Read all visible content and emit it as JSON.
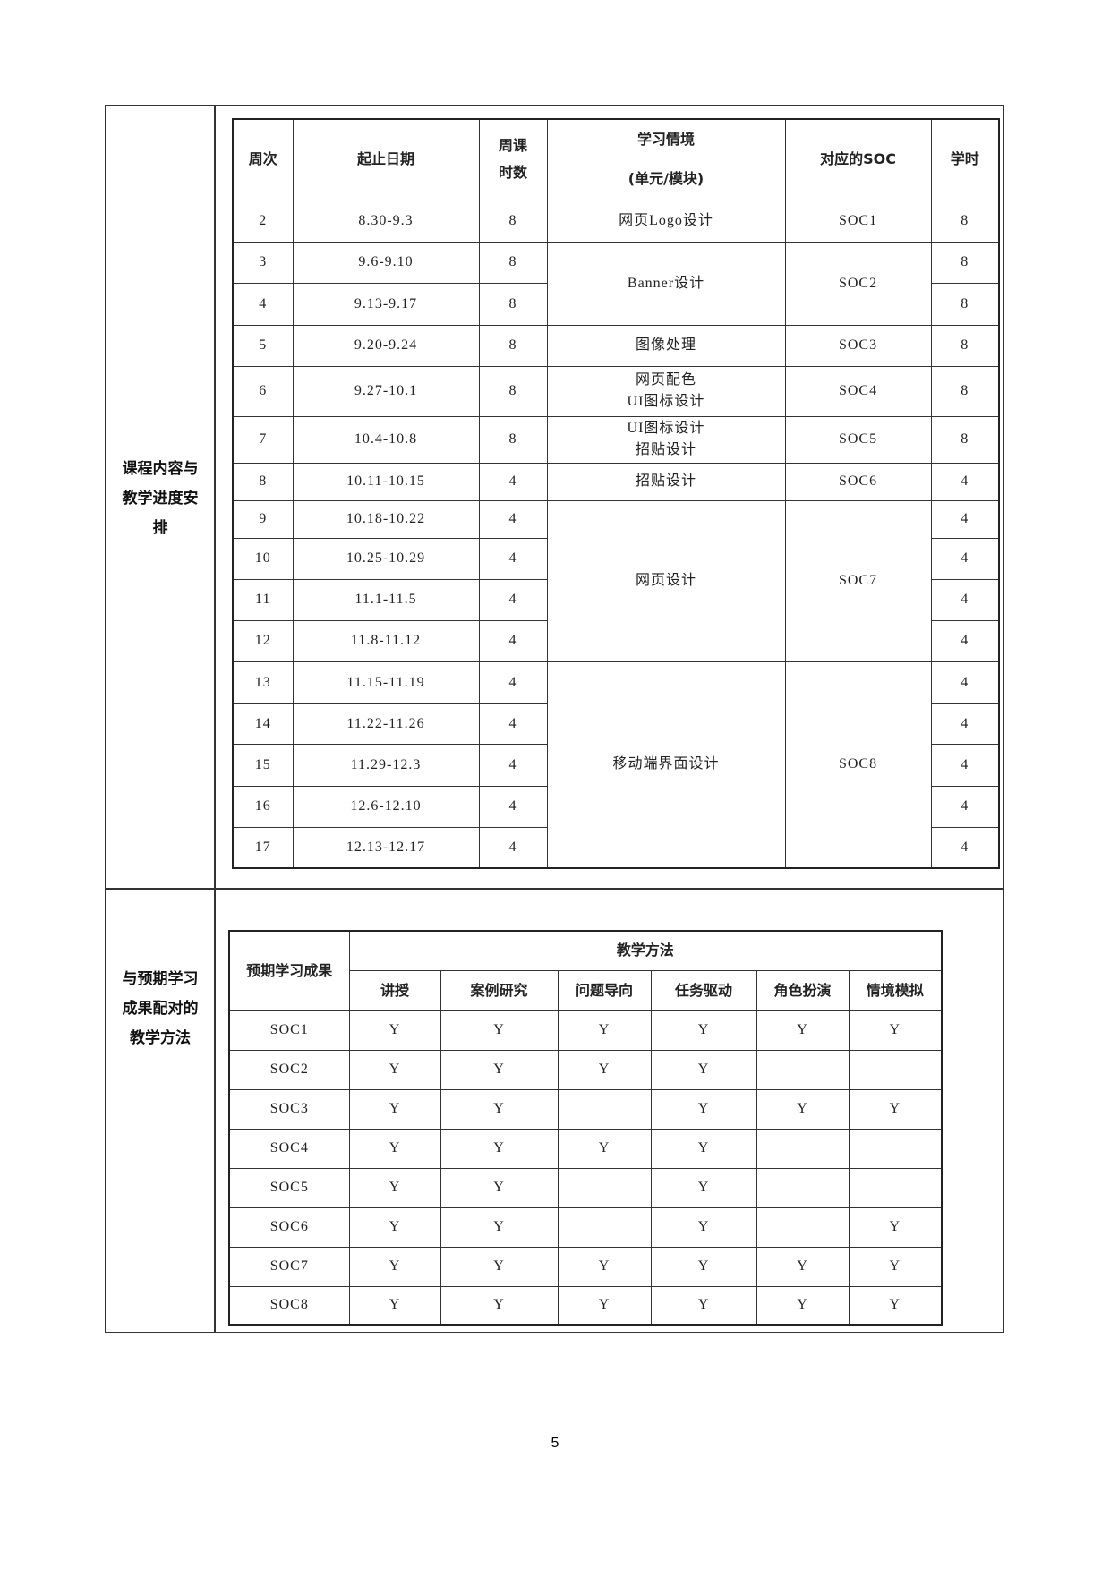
{
  "section1_label": [
    "课程内容与",
    "教学进度安",
    "排"
  ],
  "section2_label": [
    "与预期学习",
    "成果配对的",
    "教学方法"
  ],
  "schedule": {
    "headers": {
      "week": "周次",
      "dates": "起止日期",
      "hours_line1": "周课",
      "hours_line2": "时数",
      "topic_line1": "学习情境",
      "topic_line2": "(单元/模块)",
      "soc": "对应的SOC",
      "credit": "学时"
    },
    "rows": [
      {
        "week": "2",
        "dates": "8.30-9.3",
        "hours": "8",
        "credit": "8"
      },
      {
        "week": "3",
        "dates": "9.6-9.10",
        "hours": "8",
        "credit": "8"
      },
      {
        "week": "4",
        "dates": "9.13-9.17",
        "hours": "8",
        "credit": "8"
      },
      {
        "week": "5",
        "dates": "9.20-9.24",
        "hours": "8",
        "credit": "8"
      },
      {
        "week": "6",
        "dates": "9.27-10.1",
        "hours": "8",
        "credit": "8"
      },
      {
        "week": "7",
        "dates": "10.4-10.8",
        "hours": "8",
        "credit": "8"
      },
      {
        "week": "8",
        "dates": "10.11-10.15",
        "hours": "4",
        "credit": "4"
      },
      {
        "week": "9",
        "dates": "10.18-10.22",
        "hours": "4",
        "credit": "4"
      },
      {
        "week": "10",
        "dates": "10.25-10.29",
        "hours": "4",
        "credit": "4"
      },
      {
        "week": "11",
        "dates": "11.1-11.5",
        "hours": "4",
        "credit": "4"
      },
      {
        "week": "12",
        "dates": "11.8-11.12",
        "hours": "4",
        "credit": "4"
      },
      {
        "week": "13",
        "dates": "11.15-11.19",
        "hours": "4",
        "credit": "4"
      },
      {
        "week": "14",
        "dates": "11.22-11.26",
        "hours": "4",
        "credit": "4"
      },
      {
        "week": "15",
        "dates": "11.29-12.3",
        "hours": "4",
        "credit": "4"
      },
      {
        "week": "16",
        "dates": "12.6-12.10",
        "hours": "4",
        "credit": "4"
      },
      {
        "week": "17",
        "dates": "12.13-12.17",
        "hours": "4",
        "credit": "4"
      }
    ],
    "topics": [
      {
        "lines": [
          "网页Logo设计"
        ],
        "soc": "SOC1",
        "span": 1
      },
      {
        "lines": [
          "Banner设计"
        ],
        "soc": "SOC2",
        "span": 2
      },
      {
        "lines": [
          "图像处理"
        ],
        "soc": "SOC3",
        "span": 1
      },
      {
        "lines": [
          "网页配色",
          "UI图标设计"
        ],
        "soc": "SOC4",
        "span": 1
      },
      {
        "lines": [
          "UI图标设计",
          "招贴设计"
        ],
        "soc": "SOC5",
        "span": 1
      },
      {
        "lines": [
          "招贴设计"
        ],
        "soc": "SOC6",
        "span": 1
      },
      {
        "lines": [
          "网页设计"
        ],
        "soc": "SOC7",
        "span": 4
      },
      {
        "lines": [
          "移动端界面设计"
        ],
        "soc": "SOC8",
        "span": 5
      }
    ]
  },
  "methods": {
    "outcome_header": "预期学习成果",
    "group_header": "教学方法",
    "columns": [
      "讲授",
      "案例研究",
      "问题导向",
      "任务驱动",
      "角色扮演",
      "情境模拟"
    ],
    "rows": [
      {
        "soc": "SOC1",
        "marks": [
          "Y",
          "Y",
          "Y",
          "Y",
          "Y",
          "Y"
        ]
      },
      {
        "soc": "SOC2",
        "marks": [
          "Y",
          "Y",
          "Y",
          "Y",
          "",
          ""
        ]
      },
      {
        "soc": "SOC3",
        "marks": [
          "Y",
          "Y",
          "",
          "Y",
          "Y",
          "Y"
        ]
      },
      {
        "soc": "SOC4",
        "marks": [
          "Y",
          "Y",
          "Y",
          "Y",
          "",
          ""
        ]
      },
      {
        "soc": "SOC5",
        "marks": [
          "Y",
          "Y",
          "",
          "Y",
          "",
          ""
        ]
      },
      {
        "soc": "SOC6",
        "marks": [
          "Y",
          "Y",
          "",
          "Y",
          "",
          "Y"
        ]
      },
      {
        "soc": "SOC7",
        "marks": [
          "Y",
          "Y",
          "Y",
          "Y",
          "Y",
          "Y"
        ]
      },
      {
        "soc": "SOC8",
        "marks": [
          "Y",
          "Y",
          "Y",
          "Y",
          "Y",
          "Y"
        ]
      }
    ]
  },
  "page_number": "5"
}
